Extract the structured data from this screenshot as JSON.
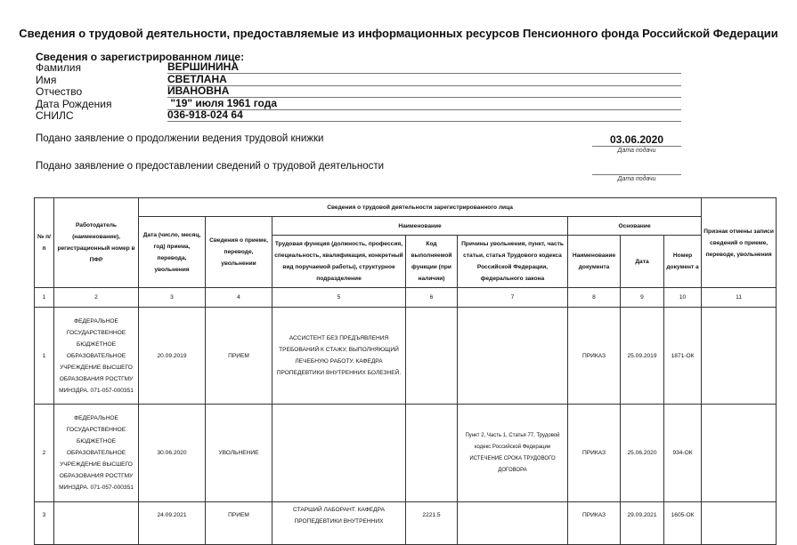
{
  "title": "Сведения о трудовой деятельности, предоставляемые из информационных ресурсов Пенсионного фонда Российской Федерации",
  "person": {
    "section_title": "Сведения о зарегистрированном лице:",
    "fields": [
      {
        "label": "Фамилия",
        "value": "ВЕРШИНИНА"
      },
      {
        "label": "Имя",
        "value": "СВЕТЛАНА"
      },
      {
        "label": "Отчество",
        "value": "ИВАНОВНА"
      },
      {
        "label": "Дата Рождения",
        "value": " \"19\" июля 1961 года"
      },
      {
        "label": "СНИЛС",
        "value": "036-918-024 64"
      }
    ]
  },
  "statements": [
    {
      "text": "Подано заявление о продолжении ведения трудовой книжки",
      "date": "03.06.2020",
      "caption": "Дата подачи"
    },
    {
      "text": "Подано заявление о предоставлении сведений о трудовой деятельности",
      "date": "",
      "caption": "Дата подачи"
    }
  ],
  "table": {
    "group_header": "Сведения о трудовой деятельности зарегистрированного лица",
    "name_header": "Наименование",
    "basis_header": "Основание",
    "headers": [
      "№ п/п",
      "Работодатель (наименование), регистрационный номер в ПФР",
      "Дата (число, месяц, год) приема, перевода, увольнения",
      "Сведения о приеме, переводе, увольнении",
      "Трудовая функция (должность, профессия, специальность, квалификация, конкретный вид поручаемой работы), структурное подразделение",
      "Код выполняемой функции (при наличии)",
      "Причины увольнения, пункт, часть статьи, статья Трудового кодекса Российской Федерации, федерального закона",
      "Наименование документа",
      "Дата",
      "Номер документ а",
      "Признак отмены записи сведений о приеме, переводе, увольнения"
    ],
    "numbers": [
      "1",
      "2",
      "3",
      "4",
      "5",
      "6",
      "7",
      "8",
      "9",
      "10",
      "11"
    ],
    "rows": [
      [
        "1",
        "ФЕДЕРАЛЬНОЕ ГОСУДАРСТВЕННОЕ БЮДЖЕТНОЕ ОБРАЗОВАТЕЛЬНОЕ УЧРЕЖДЕНИЕ ВЫСШЕГО ОБРАЗОВАНИЯ РОСТГМУ МИНЗДРА. 071-057-000351",
        "20.09.2019",
        "ПРИЕМ",
        "АССИСТЕНТ БЕЗ ПРЕДЪЯВЛЕНИЯ ТРЕБОВАНИЙ К СТАЖУ, ВЫПОЛНЯЮЩИЙ ЛЕЧЕБНУЮ РАБОТУ. КАФЕДРА ПРОПЕДЕВТИКИ ВНУТРЕННИХ БОЛЕЗНЕЙ.",
        "",
        "",
        "ПРИКАЗ",
        "25.09.2019",
        "1871-ОК",
        ""
      ],
      [
        "2",
        "ФЕДЕРАЛЬНОЕ ГОСУДАРСТВЕННОЕ БЮДЖЕТНОЕ ОБРАЗОВАТЕЛЬНОЕ УЧРЕЖДЕНИЕ ВЫСШЕГО ОБРАЗОВАНИЯ РОСТГМУ МИНЗДРА. 071-057-000351",
        "30.06.2020",
        "УВОЛЬНЕНИЕ",
        "",
        "",
        "Пункт 2,  Часть 1,  Статья 77, Трудовой кодекс Российской Федерации ИСТЕЧЕНИЕ СРОКА ТРУДОВОГО ДОГОВОРА",
        "ПРИКАЗ",
        "25.06.2020",
        "934-ОК",
        ""
      ],
      [
        "3",
        "",
        "24.09.2021",
        "ПРИЕМ",
        "СТАРШИЙ ЛАБОРАНТ. КАФЕДРА ПРОПЕДЕВТИКИ ВНУТРЕННИХ",
        "2221.5",
        "",
        "ПРИКАЗ",
        "29.09.2021",
        "1605-ОК",
        ""
      ]
    ]
  }
}
